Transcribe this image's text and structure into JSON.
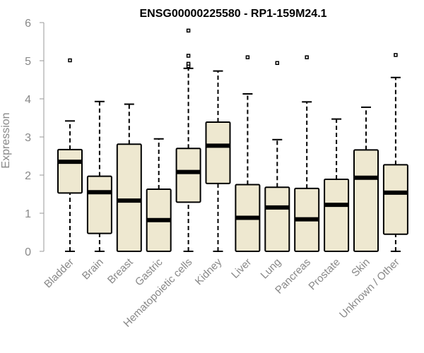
{
  "chart_data": {
    "type": "box",
    "title": "ENSG00000225580 - RP1-159M24.1",
    "ylabel": "Expression",
    "xlabel": "",
    "ylim": [
      0,
      6
    ],
    "yticks": [
      "0",
      "1",
      "2",
      "3",
      "4",
      "5",
      "6"
    ],
    "box_color": "#eee8d0",
    "categories": [
      "Bladder",
      "Brain",
      "Breast",
      "Gastric",
      "Hematopoietic cells",
      "Kidney",
      "Liver",
      "Lung",
      "Pancreas",
      "Prostate",
      "Skin",
      "Unknown / Other"
    ],
    "boxes": [
      {
        "min": 0,
        "q1": 1.53,
        "median": 2.35,
        "q3": 2.67,
        "max": 3.42,
        "outliers": [
          5.01
        ]
      },
      {
        "min": 0,
        "q1": 0.47,
        "median": 1.55,
        "q3": 1.97,
        "max": 3.93,
        "outliers": []
      },
      {
        "min": 0,
        "q1": 0,
        "median": 1.33,
        "q3": 2.81,
        "max": 3.86,
        "outliers": []
      },
      {
        "min": 0,
        "q1": 0,
        "median": 0.82,
        "q3": 1.63,
        "max": 2.95,
        "outliers": []
      },
      {
        "min": 0,
        "q1": 1.29,
        "median": 2.08,
        "q3": 2.7,
        "max": 4.8,
        "outliers": [
          4.86,
          4.92,
          5.13,
          5.79
        ]
      },
      {
        "min": 0,
        "q1": 1.78,
        "median": 2.77,
        "q3": 3.39,
        "max": 4.73,
        "outliers": []
      },
      {
        "min": 0,
        "q1": 0,
        "median": 0.88,
        "q3": 1.75,
        "max": 4.13,
        "outliers": [
          5.09
        ]
      },
      {
        "min": 0,
        "q1": 0,
        "median": 1.15,
        "q3": 1.68,
        "max": 2.93,
        "outliers": [
          4.94
        ]
      },
      {
        "min": 0,
        "q1": 0,
        "median": 0.84,
        "q3": 1.65,
        "max": 3.92,
        "outliers": [
          5.09
        ]
      },
      {
        "min": 0,
        "q1": 0,
        "median": 1.22,
        "q3": 1.89,
        "max": 3.47,
        "outliers": []
      },
      {
        "min": 0,
        "q1": 0,
        "median": 1.93,
        "q3": 2.66,
        "max": 3.78,
        "outliers": []
      },
      {
        "min": 0,
        "q1": 0.45,
        "median": 1.54,
        "q3": 2.27,
        "max": 4.56,
        "outliers": [
          5.15
        ]
      }
    ]
  }
}
